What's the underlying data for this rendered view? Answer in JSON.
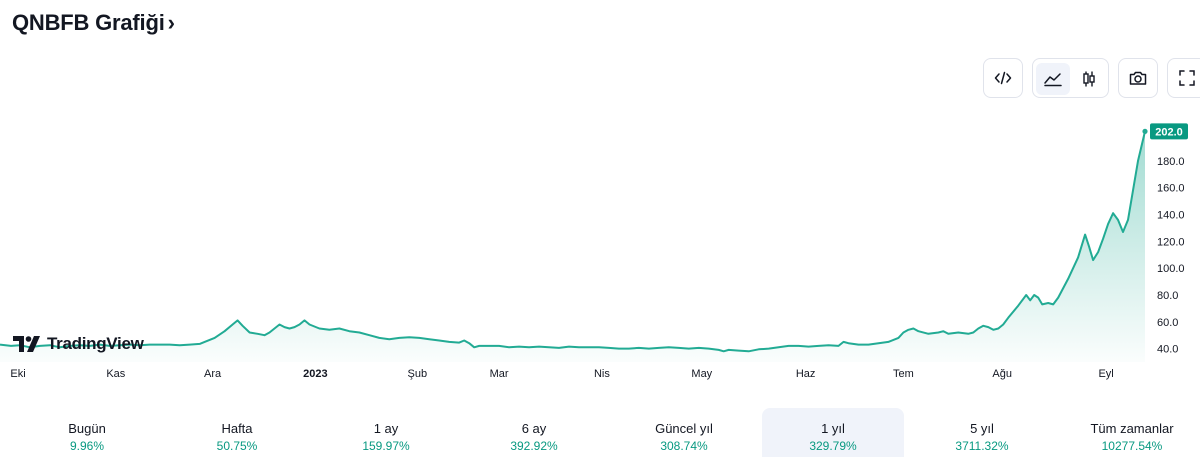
{
  "title": "QNBFB Grafiği",
  "title_chevron": "›",
  "toolbar": {
    "embed_icon": "code-icon",
    "area_icon": "area-chart-icon",
    "candle_icon": "candlestick-icon",
    "snapshot_icon": "camera-icon",
    "fullscreen_icon": "fullscreen-icon",
    "active_style": "area"
  },
  "logo_text": "TradingView",
  "colors": {
    "line": "#22ab94",
    "accent": "#089981",
    "fill_top": "#22ab94",
    "axis_text": "#131722",
    "price_tag_bg": "#089981"
  },
  "chart_data": {
    "type": "area",
    "last_price_label": "202.0",
    "ylim": [
      30,
      212
    ],
    "y_ticks": [
      40.0,
      60.0,
      80.0,
      100.0,
      120.0,
      140.0,
      160.0,
      180.0
    ],
    "y_tick_labels": [
      "40.0",
      "60.0",
      "80.0",
      "100.0",
      "120.0",
      "140.0",
      "160.0",
      "180.0"
    ],
    "x_tick_labels": [
      {
        "label": "Eki",
        "t": 0.018,
        "bold": false
      },
      {
        "label": "Kas",
        "t": 0.116,
        "bold": false
      },
      {
        "label": "Ara",
        "t": 0.213,
        "bold": false
      },
      {
        "label": "2023",
        "t": 0.316,
        "bold": true
      },
      {
        "label": "Şub",
        "t": 0.418,
        "bold": false
      },
      {
        "label": "Mar",
        "t": 0.5,
        "bold": false
      },
      {
        "label": "Nis",
        "t": 0.603,
        "bold": false
      },
      {
        "label": "May",
        "t": 0.703,
        "bold": false
      },
      {
        "label": "Haz",
        "t": 0.807,
        "bold": false
      },
      {
        "label": "Tem",
        "t": 0.905,
        "bold": false
      },
      {
        "label": "Ağu",
        "t": 1.004,
        "bold": false
      },
      {
        "label": "Eyl",
        "t": 1.108,
        "bold": false
      }
    ],
    "t_range": [
      0,
      1.147
    ],
    "series": [
      {
        "values": [
          [
            0,
            43
          ],
          [
            0.011,
            42
          ],
          [
            0.02,
            42.5
          ],
          [
            0.03,
            41
          ],
          [
            0.04,
            42
          ],
          [
            0.05,
            42.5
          ],
          [
            0.06,
            41
          ],
          [
            0.07,
            42
          ],
          [
            0.08,
            42.5
          ],
          [
            0.09,
            42
          ],
          [
            0.1,
            43
          ],
          [
            0.11,
            42
          ],
          [
            0.12,
            42.5
          ],
          [
            0.13,
            43
          ],
          [
            0.14,
            42.5
          ],
          [
            0.15,
            43
          ],
          [
            0.16,
            43
          ],
          [
            0.17,
            43
          ],
          [
            0.18,
            42.5
          ],
          [
            0.19,
            43
          ],
          [
            0.2,
            43.5
          ],
          [
            0.205,
            45
          ],
          [
            0.215,
            48
          ],
          [
            0.225,
            53
          ],
          [
            0.233,
            58
          ],
          [
            0.238,
            61
          ],
          [
            0.243,
            57
          ],
          [
            0.25,
            52
          ],
          [
            0.258,
            51
          ],
          [
            0.265,
            50
          ],
          [
            0.27,
            52
          ],
          [
            0.275,
            55
          ],
          [
            0.28,
            58
          ],
          [
            0.285,
            56
          ],
          [
            0.29,
            55
          ],
          [
            0.295,
            56
          ],
          [
            0.3,
            58
          ],
          [
            0.305,
            61
          ],
          [
            0.31,
            58
          ],
          [
            0.32,
            55
          ],
          [
            0.33,
            54
          ],
          [
            0.34,
            55
          ],
          [
            0.35,
            53
          ],
          [
            0.36,
            52
          ],
          [
            0.37,
            50
          ],
          [
            0.38,
            48
          ],
          [
            0.39,
            47
          ],
          [
            0.4,
            48
          ],
          [
            0.41,
            48.5
          ],
          [
            0.42,
            48
          ],
          [
            0.43,
            47
          ],
          [
            0.44,
            46
          ],
          [
            0.45,
            45
          ],
          [
            0.46,
            44.5
          ],
          [
            0.465,
            46
          ],
          [
            0.47,
            44
          ],
          [
            0.475,
            41
          ],
          [
            0.48,
            42
          ],
          [
            0.49,
            42
          ],
          [
            0.5,
            42
          ],
          [
            0.51,
            41
          ],
          [
            0.52,
            41.5
          ],
          [
            0.53,
            41
          ],
          [
            0.54,
            41.5
          ],
          [
            0.55,
            41
          ],
          [
            0.56,
            40.5
          ],
          [
            0.57,
            41.5
          ],
          [
            0.58,
            41
          ],
          [
            0.59,
            41
          ],
          [
            0.6,
            41
          ],
          [
            0.61,
            40.5
          ],
          [
            0.62,
            40
          ],
          [
            0.63,
            40
          ],
          [
            0.64,
            40.5
          ],
          [
            0.65,
            40
          ],
          [
            0.66,
            40.5
          ],
          [
            0.67,
            41
          ],
          [
            0.68,
            40.5
          ],
          [
            0.69,
            40
          ],
          [
            0.7,
            40.5
          ],
          [
            0.71,
            40
          ],
          [
            0.72,
            39
          ],
          [
            0.725,
            38
          ],
          [
            0.73,
            39
          ],
          [
            0.74,
            38.5
          ],
          [
            0.75,
            38
          ],
          [
            0.76,
            39.5
          ],
          [
            0.77,
            40
          ],
          [
            0.78,
            41
          ],
          [
            0.79,
            42
          ],
          [
            0.8,
            42
          ],
          [
            0.81,
            41.5
          ],
          [
            0.82,
            42
          ],
          [
            0.83,
            42.5
          ],
          [
            0.84,
            42
          ],
          [
            0.845,
            45
          ],
          [
            0.85,
            44
          ],
          [
            0.86,
            43
          ],
          [
            0.87,
            43
          ],
          [
            0.88,
            44
          ],
          [
            0.89,
            45
          ],
          [
            0.9,
            48
          ],
          [
            0.905,
            52
          ],
          [
            0.91,
            54
          ],
          [
            0.915,
            55
          ],
          [
            0.92,
            53
          ],
          [
            0.93,
            51
          ],
          [
            0.94,
            52
          ],
          [
            0.945,
            53
          ],
          [
            0.95,
            51
          ],
          [
            0.96,
            52
          ],
          [
            0.97,
            51
          ],
          [
            0.975,
            52
          ],
          [
            0.98,
            55
          ],
          [
            0.985,
            57
          ],
          [
            0.99,
            56
          ],
          [
            0.995,
            54
          ],
          [
            1.0,
            55
          ],
          [
            1.005,
            58
          ],
          [
            1.01,
            63
          ],
          [
            1.02,
            72
          ],
          [
            1.028,
            80
          ],
          [
            1.032,
            76
          ],
          [
            1.036,
            80
          ],
          [
            1.04,
            78
          ],
          [
            1.044,
            73
          ],
          [
            1.05,
            74
          ],
          [
            1.055,
            73
          ],
          [
            1.06,
            78
          ],
          [
            1.07,
            92
          ],
          [
            1.08,
            108
          ],
          [
            1.087,
            125
          ],
          [
            1.091,
            116
          ],
          [
            1.095,
            106
          ],
          [
            1.1,
            112
          ],
          [
            1.105,
            122
          ],
          [
            1.11,
            133
          ],
          [
            1.115,
            141
          ],
          [
            1.12,
            136
          ],
          [
            1.125,
            127
          ],
          [
            1.13,
            136
          ],
          [
            1.135,
            158
          ],
          [
            1.14,
            180
          ],
          [
            1.147,
            202
          ]
        ]
      }
    ]
  },
  "stats": [
    {
      "label": "Bugün",
      "value": "9.96%"
    },
    {
      "label": "Hafta",
      "value": "50.75%"
    },
    {
      "label": "1 ay",
      "value": "159.97%"
    },
    {
      "label": "6 ay",
      "value": "392.92%"
    },
    {
      "label": "Güncel yıl",
      "value": "308.74%"
    },
    {
      "label": "1 yıl",
      "value": "329.79%"
    },
    {
      "label": "5 yıl",
      "value": "3711.32%"
    },
    {
      "label": "Tüm zamanlar",
      "value": "10277.54%"
    }
  ],
  "active_stat": 5
}
